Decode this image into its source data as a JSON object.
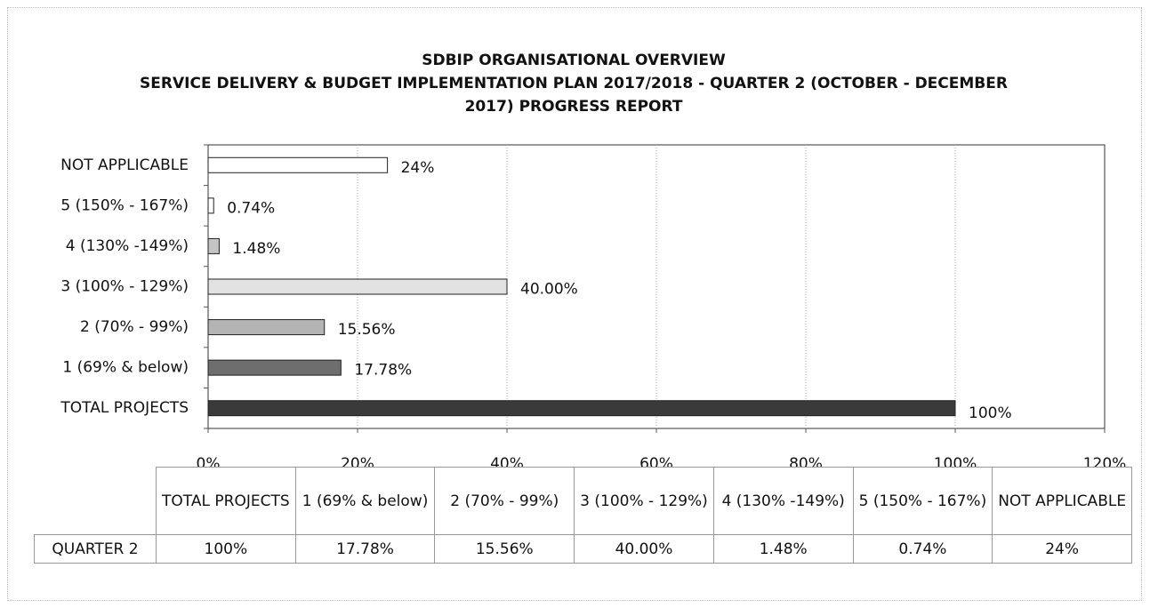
{
  "chart_data": {
    "type": "bar",
    "orientation": "horizontal",
    "title": "SDBIP ORGANISATIONAL OVERVIEW",
    "subtitle": "SERVICE DELIVERY & BUDGET IMPLEMENTATION PLAN 2017/2018 - QUARTER 2 (OCTOBER - DECEMBER 2017) PROGRESS REPORT",
    "categories": [
      "TOTAL PROJECTS",
      "1 (69% & below)",
      "2 (70% - 99%)",
      "3 (100% - 129%)",
      "4 (130% -149%)",
      "5 (150% - 167%)",
      "NOT APPLICABLE"
    ],
    "series": [
      {
        "name": "QUARTER 2",
        "values": [
          100,
          17.78,
          15.56,
          40.0,
          1.48,
          0.74,
          24
        ],
        "value_labels": [
          "100%",
          "17.78%",
          "15.56%",
          "40.00%",
          "1.48%",
          "0.74%",
          "24%"
        ],
        "colors": [
          "#3a3a3a",
          "#6e6e6e",
          "#b4b4b4",
          "#e2e2e2",
          "#c4c4c4",
          "#ffffff",
          "#ffffff"
        ]
      }
    ],
    "xlim": [
      0,
      120
    ],
    "xticks": [
      {
        "value": 0,
        "label": "0%"
      },
      {
        "value": 20,
        "label": "20%"
      },
      {
        "value": 40,
        "label": "40%"
      },
      {
        "value": 60,
        "label": "60%"
      },
      {
        "value": 80,
        "label": "80%"
      },
      {
        "value": 100,
        "label": "100%"
      },
      {
        "value": 120,
        "label": "120%"
      }
    ],
    "grid": true,
    "data_table": true
  }
}
